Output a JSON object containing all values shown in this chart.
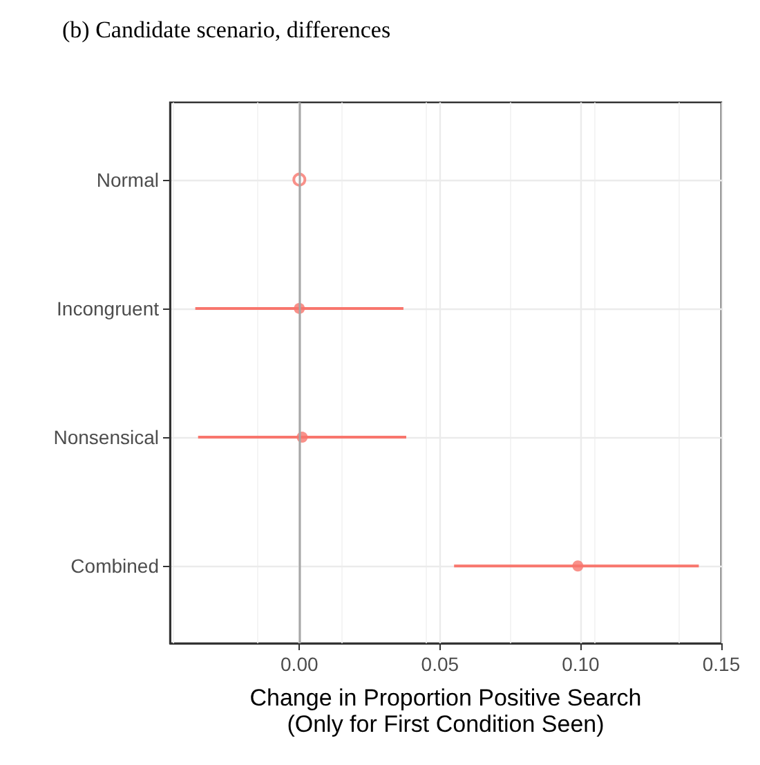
{
  "chart_data": {
    "type": "scatter",
    "title": "(b) Candidate scenario, differences",
    "orientation": "horizontal",
    "categories": [
      "Normal",
      "Incongruent",
      "Nonsensical",
      "Combined"
    ],
    "values": [
      0,
      0,
      0.001,
      0.099
    ],
    "errors": [
      null,
      [
        -0.037,
        0.037
      ],
      [
        -0.036,
        0.038
      ],
      [
        0.055,
        0.142
      ]
    ],
    "color": "#f8766d",
    "marker": "circle",
    "xlabel": "Change in Proportion Positive Search\n(Only for First Condition Seen)",
    "xlim": [
      -0.046,
      0.15
    ],
    "xticks": [
      {
        "value": 0,
        "label": "0.00"
      },
      {
        "value": 0.05,
        "label": "0.05"
      },
      {
        "value": 0.1,
        "label": "0.10"
      },
      {
        "value": 0.15,
        "label": "0.15"
      }
    ],
    "ref_lines": [
      {
        "axis": "x",
        "value": 0,
        "color": "#a6a6a6"
      }
    ],
    "grid": true
  }
}
